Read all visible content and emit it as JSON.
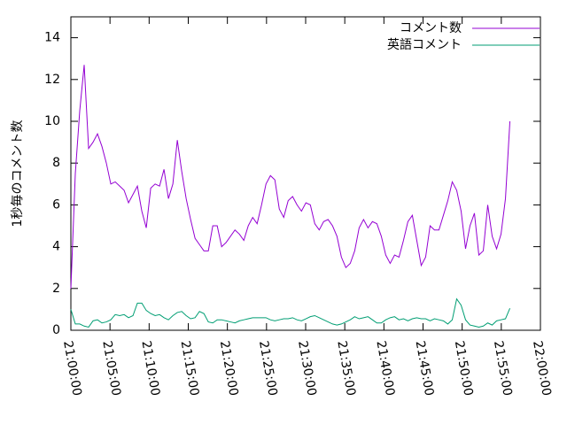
{
  "chart_data": {
    "type": "line",
    "ylabel": "1秒毎のコメント数",
    "x": [
      "21:00:00",
      "21:00:34",
      "21:01:08",
      "21:01:42",
      "21:02:16",
      "21:02:50",
      "21:03:24",
      "21:03:58",
      "21:04:32",
      "21:05:06",
      "21:05:40",
      "21:06:14",
      "21:06:48",
      "21:07:22",
      "21:07:56",
      "21:08:30",
      "21:09:04",
      "21:09:38",
      "21:10:12",
      "21:10:46",
      "21:11:20",
      "21:11:54",
      "21:12:28",
      "21:13:02",
      "21:13:36",
      "21:14:10",
      "21:14:44",
      "21:15:18",
      "21:15:52",
      "21:16:26",
      "21:17:00",
      "21:17:34",
      "21:18:08",
      "21:18:42",
      "21:19:16",
      "21:19:50",
      "21:20:24",
      "21:20:58",
      "21:21:32",
      "21:22:06",
      "21:22:40",
      "21:23:14",
      "21:23:48",
      "21:24:22",
      "21:24:56",
      "21:25:30",
      "21:26:04",
      "21:26:38",
      "21:27:12",
      "21:27:46",
      "21:28:20",
      "21:28:54",
      "21:29:28",
      "21:30:02",
      "21:30:36",
      "21:31:10",
      "21:31:44",
      "21:32:18",
      "21:32:52",
      "21:33:26",
      "21:34:00",
      "21:34:34",
      "21:35:08",
      "21:35:42",
      "21:36:16",
      "21:36:50",
      "21:37:24",
      "21:37:58",
      "21:38:32",
      "21:39:06",
      "21:39:40",
      "21:40:14",
      "21:40:48",
      "21:41:22",
      "21:41:56",
      "21:42:30",
      "21:43:04",
      "21:43:38",
      "21:44:12",
      "21:44:46",
      "21:45:20",
      "21:45:54",
      "21:46:28",
      "21:47:02",
      "21:47:36",
      "21:48:10",
      "21:48:44",
      "21:49:18",
      "21:49:52",
      "21:50:26",
      "21:51:00",
      "21:51:34",
      "21:52:08",
      "21:52:42",
      "21:53:16",
      "21:53:50",
      "21:54:24",
      "21:54:58",
      "21:55:32",
      "21:56:06"
    ],
    "series": [
      {
        "name": "コメント数",
        "color": "#9400d3",
        "values": [
          2.0,
          7.5,
          10.5,
          12.7,
          8.7,
          9.0,
          9.4,
          8.8,
          8.0,
          7.0,
          7.1,
          6.9,
          6.7,
          6.1,
          6.5,
          6.9,
          5.7,
          4.9,
          6.8,
          7.0,
          6.9,
          7.7,
          6.3,
          7.0,
          9.1,
          7.6,
          6.3,
          5.3,
          4.4,
          4.1,
          3.8,
          3.8,
          5.0,
          5.0,
          4.0,
          4.2,
          4.5,
          4.8,
          4.6,
          4.3,
          5.0,
          5.4,
          5.1,
          6.0,
          7.0,
          7.4,
          7.2,
          5.8,
          5.4,
          6.2,
          6.4,
          6.0,
          5.7,
          6.1,
          6.0,
          5.1,
          4.8,
          5.2,
          5.3,
          5.0,
          4.5,
          3.5,
          3.0,
          3.2,
          3.8,
          4.9,
          5.3,
          4.9,
          5.2,
          5.1,
          4.5,
          3.6,
          3.2,
          3.6,
          3.5,
          4.3,
          5.2,
          5.5,
          4.3,
          3.1,
          3.5,
          5.0,
          4.8,
          4.8,
          5.5,
          6.2,
          7.1,
          6.7,
          5.7,
          3.9,
          5.0,
          5.6,
          3.6,
          3.8,
          6.0,
          4.5,
          3.9,
          4.6,
          6.3,
          10.0
        ]
      },
      {
        "name": "英語コメント",
        "color": "#009e73",
        "values": [
          1.0,
          0.3,
          0.3,
          0.2,
          0.15,
          0.45,
          0.5,
          0.35,
          0.4,
          0.5,
          0.75,
          0.7,
          0.75,
          0.6,
          0.7,
          1.3,
          1.3,
          0.95,
          0.8,
          0.7,
          0.75,
          0.6,
          0.5,
          0.7,
          0.85,
          0.9,
          0.7,
          0.55,
          0.6,
          0.9,
          0.8,
          0.4,
          0.35,
          0.5,
          0.5,
          0.45,
          0.4,
          0.35,
          0.45,
          0.5,
          0.55,
          0.6,
          0.6,
          0.6,
          0.6,
          0.5,
          0.45,
          0.5,
          0.55,
          0.55,
          0.6,
          0.5,
          0.45,
          0.55,
          0.65,
          0.7,
          0.6,
          0.5,
          0.4,
          0.3,
          0.25,
          0.3,
          0.4,
          0.5,
          0.65,
          0.55,
          0.6,
          0.65,
          0.5,
          0.35,
          0.35,
          0.5,
          0.6,
          0.65,
          0.5,
          0.55,
          0.45,
          0.55,
          0.6,
          0.55,
          0.55,
          0.45,
          0.55,
          0.5,
          0.45,
          0.3,
          0.5,
          1.5,
          1.2,
          0.5,
          0.25,
          0.2,
          0.15,
          0.2,
          0.35,
          0.25,
          0.45,
          0.5,
          0.55,
          1.05
        ]
      }
    ],
    "xlim": [
      "21:00:00",
      "22:00:00"
    ],
    "xticks": [
      "21:00:00",
      "21:05:00",
      "21:10:00",
      "21:15:00",
      "21:20:00",
      "21:25:00",
      "21:30:00",
      "21:35:00",
      "21:40:00",
      "21:45:00",
      "21:50:00",
      "21:55:00",
      "22:00:00"
    ],
    "ylim": [
      0,
      15
    ],
    "yticks": [
      0,
      2,
      4,
      6,
      8,
      10,
      12,
      14
    ],
    "legend": "top-right"
  }
}
